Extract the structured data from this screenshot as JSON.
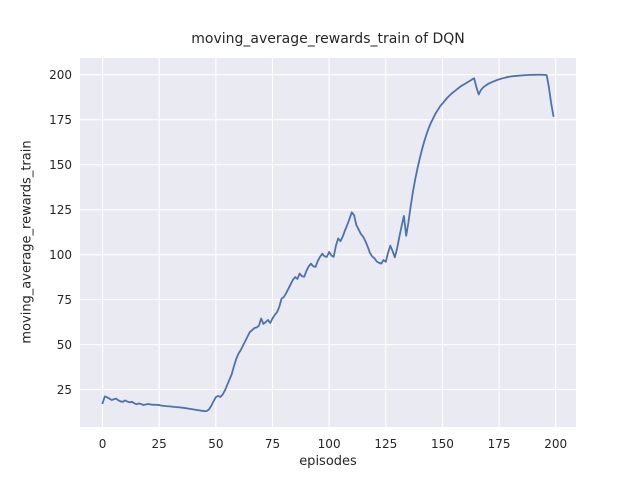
{
  "style": {
    "figure_background": "#ffffff",
    "axes_background": "#eaeaf2",
    "grid_color": "#ffffff",
    "line_color": "#4c72b0",
    "text_color": "#262626"
  },
  "chart_data": {
    "type": "line",
    "title": "moving_average_rewards_train of DQN",
    "xlabel": "episodes",
    "ylabel": "moving_average_rewards_train",
    "xlim": [
      -9.95,
      208.95
    ],
    "ylim": [
      4.2,
      209.3
    ],
    "xticks": [
      0,
      25,
      50,
      75,
      100,
      125,
      150,
      175,
      200
    ],
    "yticks": [
      25,
      50,
      75,
      100,
      125,
      150,
      175,
      200
    ],
    "grid": true,
    "legend": null,
    "series": [
      {
        "name": "moving_average_rewards_train",
        "color": "#4c72b0",
        "x": [
          0,
          1,
          2,
          3,
          4,
          5,
          6,
          7,
          8,
          9,
          10,
          11,
          12,
          13,
          14,
          15,
          16,
          17,
          18,
          19,
          20,
          21,
          22,
          24,
          25,
          26,
          28,
          30,
          32,
          34,
          36,
          38,
          40,
          42,
          44,
          45,
          46,
          47,
          48,
          49,
          50,
          51,
          52,
          53,
          54,
          55,
          56,
          57,
          58,
          59,
          60,
          61,
          62,
          63,
          64,
          65,
          66,
          67,
          68,
          69,
          70,
          71,
          72,
          73,
          74,
          75,
          76,
          77,
          78,
          79,
          80,
          81,
          82,
          83,
          84,
          85,
          86,
          87,
          88,
          89,
          90,
          91,
          92,
          93,
          94,
          95,
          96,
          97,
          98,
          99,
          100,
          101,
          102,
          103,
          104,
          105,
          106,
          107,
          108,
          109,
          110,
          111,
          112,
          113,
          114,
          115,
          116,
          117,
          118,
          119,
          120,
          121,
          122,
          123,
          124,
          125,
          126,
          127,
          128,
          129,
          130,
          131,
          132,
          133,
          134,
          135,
          136,
          137,
          138,
          139,
          140,
          141,
          142,
          143,
          144,
          145,
          146,
          147,
          148,
          149,
          150,
          152,
          154,
          156,
          158,
          160,
          162,
          163,
          164,
          165,
          166,
          167,
          168,
          170,
          172,
          174,
          176,
          178,
          180,
          183,
          186,
          189,
          192,
          194,
          196,
          197,
          198,
          199
        ],
        "y": [
          17.4,
          21.2,
          20.7,
          20.0,
          19.2,
          19.6,
          20.0,
          19.0,
          18.4,
          18.2,
          19.0,
          18.3,
          17.9,
          18.2,
          17.4,
          16.8,
          17.3,
          17.0,
          16.4,
          16.7,
          17.0,
          16.8,
          16.6,
          16.5,
          16.4,
          16.1,
          15.8,
          15.6,
          15.3,
          15.1,
          14.8,
          14.4,
          14.0,
          13.6,
          13.2,
          13.0,
          13.1,
          14.0,
          16.0,
          18.5,
          20.8,
          21.5,
          20.9,
          22.2,
          24.5,
          27.5,
          30.5,
          33.5,
          38.0,
          42.0,
          45.0,
          47.0,
          49.5,
          52.0,
          54.5,
          57.0,
          58.0,
          59.2,
          59.5,
          60.5,
          64.5,
          61.5,
          62.5,
          63.7,
          62.0,
          64.5,
          66.5,
          68.0,
          71.0,
          75.5,
          76.5,
          78.5,
          81.0,
          83.5,
          86.0,
          87.5,
          86.5,
          89.5,
          88.0,
          87.7,
          91.0,
          93.5,
          95.0,
          93.5,
          93.2,
          96.5,
          98.8,
          100.5,
          99.0,
          98.8,
          101.5,
          99.5,
          98.8,
          105.0,
          109.0,
          107.5,
          110.0,
          113.5,
          116.5,
          120.0,
          123.5,
          122.0,
          116.5,
          114.0,
          111.5,
          110.0,
          107.5,
          104.5,
          101.0,
          99.0,
          98.0,
          96.2,
          95.5,
          95.0,
          97.0,
          96.0,
          101.0,
          105.0,
          102.0,
          98.5,
          103.5,
          110.0,
          116.0,
          121.5,
          110.5,
          118.0,
          127.0,
          135.0,
          142.0,
          148.0,
          153.5,
          158.5,
          163.0,
          167.0,
          170.5,
          173.5,
          176.0,
          178.5,
          180.5,
          182.5,
          184.0,
          187.0,
          189.5,
          191.5,
          193.5,
          195.0,
          196.5,
          197.3,
          198.0,
          193.0,
          189.0,
          191.5,
          193.0,
          194.8,
          196.0,
          197.0,
          197.8,
          198.5,
          199.0,
          199.4,
          199.7,
          199.9,
          200.0,
          200.0,
          199.8,
          193.0,
          184.0,
          177.0
        ]
      }
    ]
  }
}
